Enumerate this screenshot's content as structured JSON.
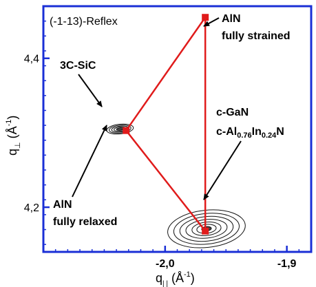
{
  "chart_data": {
    "type": "scatter",
    "panel_label": "(-1-13)-Reflex",
    "xlabel_main": "q",
    "xlabel_sub": "| |",
    "xlabel_unit_pre": " (Å",
    "xlabel_unit_exp": "-1",
    "xlabel_unit_post": ")",
    "ylabel_main": "q",
    "ylabel_sub": "⊥",
    "ylabel_unit_pre": " (Å",
    "ylabel_unit_exp": "-1",
    "ylabel_unit_post": ")",
    "xlim": [
      -2.1,
      -1.88
    ],
    "ylim": [
      4.14,
      4.47
    ],
    "xticks": [
      {
        "value": -2.0,
        "label": "-2,0"
      },
      {
        "value": -1.9,
        "label": "-1,9"
      }
    ],
    "yticks": [
      {
        "value": 4.4,
        "label": "4,4"
      },
      {
        "value": 4.2,
        "label": "4,2"
      }
    ],
    "points": [
      {
        "name": "AlN fully strained",
        "x": -1.967,
        "y": 4.455
      },
      {
        "name": "AlN fully relaxed",
        "x": -2.032,
        "y": 4.303
      },
      {
        "name": "c-GaN / c-Al0.76In0.24N",
        "x": -1.967,
        "y": 4.168
      }
    ],
    "contours": [
      {
        "name": "3C-SiC",
        "cx": -2.037,
        "cy": 4.305,
        "rx": [
          0.011,
          0.009,
          0.007,
          0.005,
          0.003
        ],
        "ry": [
          0.0065,
          0.0052,
          0.004,
          0.0028,
          0.0016
        ]
      },
      {
        "name": "c-GaN",
        "cx": -1.966,
        "cy": 4.171,
        "rx": [
          0.032,
          0.027,
          0.022,
          0.017,
          0.012,
          0.008,
          0.004
        ],
        "ry": [
          0.025,
          0.0205,
          0.0165,
          0.0125,
          0.009,
          0.006,
          0.003
        ]
      }
    ],
    "annotations": {
      "aln_strained": {
        "line1": "AlN",
        "line2": "fully strained"
      },
      "sic": "3C-SiC",
      "gan": {
        "line1": "c-GaN",
        "line2_a": "c-Al",
        "line2_sub1": "0.76",
        "line2_b": "In",
        "line2_sub2": "0.24",
        "line2_c": "N"
      },
      "aln_relaxed": {
        "line1": "AlN",
        "line2": "fully relaxed"
      }
    },
    "colors": {
      "frame": "#1a2fd6",
      "triangle": "#e01b1b",
      "marker": "#e01b1b",
      "contour": "#111111"
    }
  }
}
